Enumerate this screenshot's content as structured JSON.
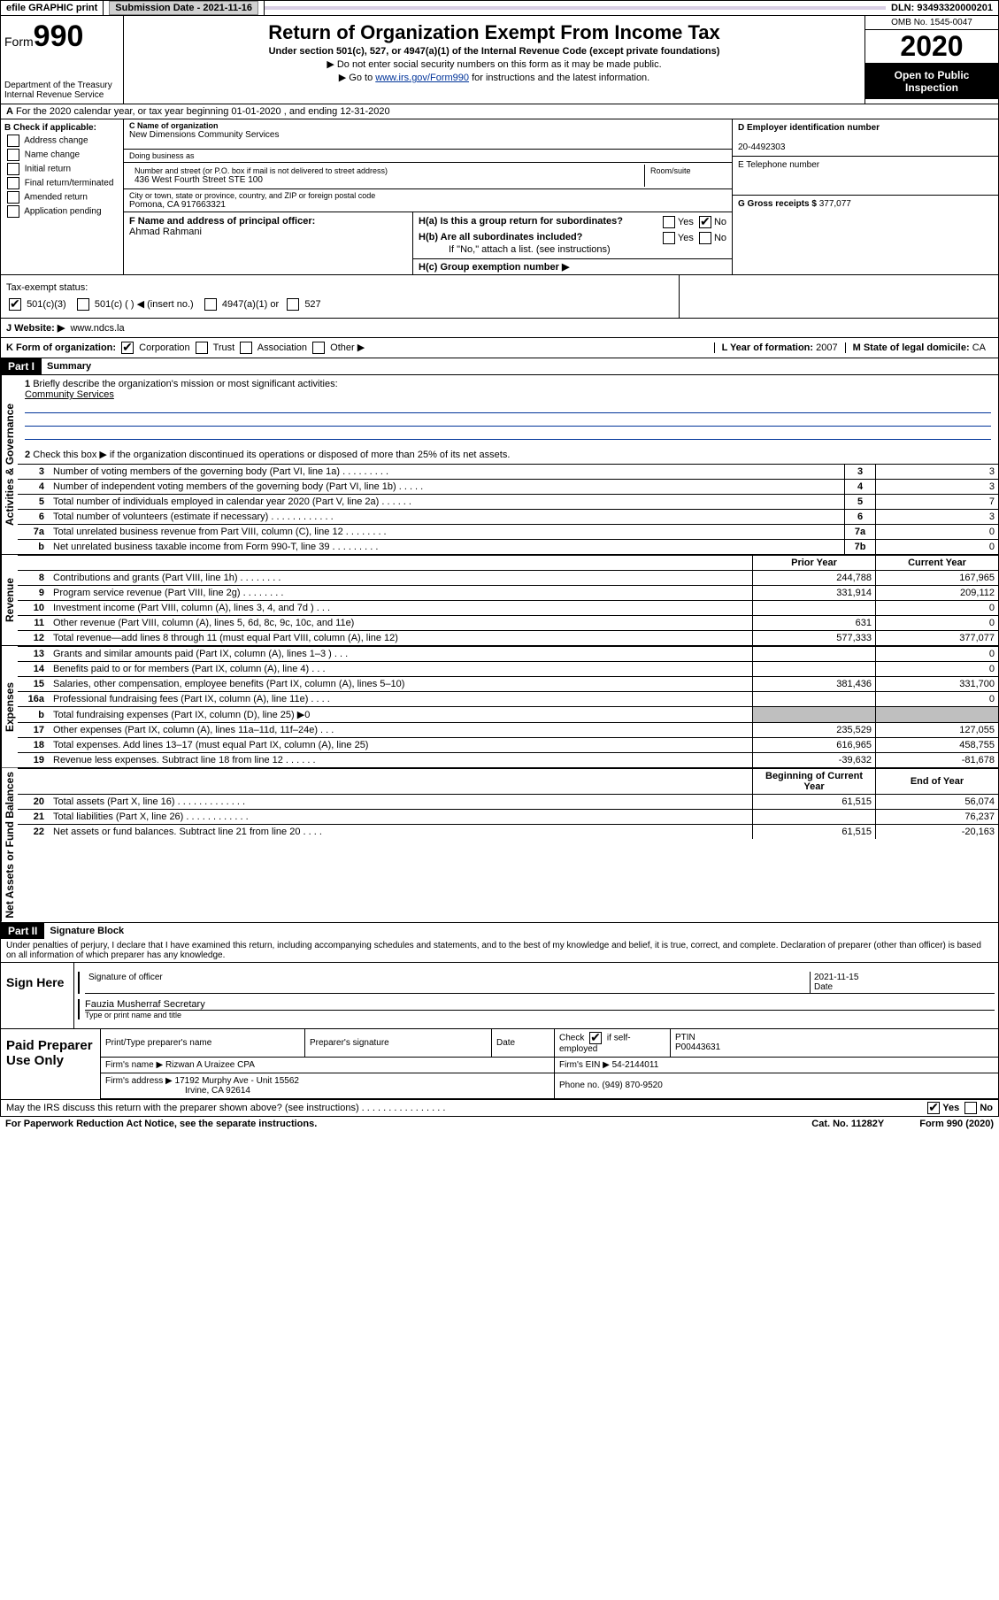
{
  "topbar": {
    "efile": "efile GRAPHIC print",
    "submission_label": "Submission Date",
    "submission_date": "2021-11-16",
    "dln_label": "DLN:",
    "dln": "93493320000201"
  },
  "header": {
    "form_label": "Form",
    "form_number": "990",
    "dept1": "Department of the Treasury",
    "dept2": "Internal Revenue Service",
    "title": "Return of Organization Exempt From Income Tax",
    "subtitle": "Under section 501(c), 527, or 4947(a)(1) of the Internal Revenue Code (except private foundations)",
    "note1": "Do not enter social security numbers on this form as it may be made public.",
    "note2_pre": "Go to ",
    "note2_link": "www.irs.gov/Form990",
    "note2_post": " for instructions and the latest information.",
    "omb": "OMB No. 1545-0047",
    "year": "2020",
    "inspect": "Open to Public Inspection"
  },
  "row_a": "For the 2020 calendar year, or tax year beginning 01-01-2020   , and ending 12-31-2020",
  "section_b": {
    "check_label": "B Check if applicable:",
    "opts": [
      "Address change",
      "Name change",
      "Initial return",
      "Final return/terminated",
      "Amended return",
      "Application pending"
    ],
    "c_label": "C Name of organization",
    "c_name": "New Dimensions Community Services",
    "dba_label": "Doing business as",
    "addr_label": "Number and street (or P.O. box if mail is not delivered to street address)",
    "addr": "436 West Fourth Street STE 100",
    "room_label": "Room/suite",
    "city_label": "City or town, state or province, country, and ZIP or foreign postal code",
    "city": "Pomona, CA  917663321",
    "f_label": "F Name and address of principal officer:",
    "f_name": "Ahmad Rahmani",
    "d_label": "D Employer identification number",
    "d_ein": "20-4492303",
    "e_label": "E Telephone number",
    "g_label": "G Gross receipts $",
    "g_val": "377,077",
    "ha_label": "H(a)  Is this a group return for subordinates?",
    "hb_label": "H(b)  Are all subordinates included?",
    "hb_note": "If \"No,\" attach a list. (see instructions)",
    "hc_label": "H(c)  Group exemption number ▶",
    "yes": "Yes",
    "no": "No"
  },
  "tax": {
    "label": "Tax-exempt status:",
    "opt1": "501(c)(3)",
    "opt2": "501(c) (  ) ◀ (insert no.)",
    "opt3": "4947(a)(1) or",
    "opt4": "527"
  },
  "website": {
    "label": "J    Website: ▶",
    "value": "www.ndcs.la"
  },
  "korg": {
    "k_label": "K Form of organization:",
    "opts": [
      "Corporation",
      "Trust",
      "Association",
      "Other ▶"
    ],
    "l_label": "L Year of formation:",
    "l_val": "2007",
    "m_label": "M State of legal domicile:",
    "m_val": "CA"
  },
  "part1": {
    "label": "Part I",
    "title": "Summary",
    "vlabel_gov": "Activities & Governance",
    "vlabel_rev": "Revenue",
    "vlabel_exp": "Expenses",
    "vlabel_net": "Net Assets or Fund Balances",
    "q1": "Briefly describe the organization's mission or most significant activities:",
    "q1_ans": "Community Services",
    "q2": "Check this box ▶        if the organization discontinued its operations or disposed of more than 25% of its net assets.",
    "rows_gov": [
      {
        "n": "3",
        "txt": "Number of voting members of the governing body (Part VI, line 1a)  .    .    .    .    .    .    .    .    .",
        "box": "3",
        "val": "3"
      },
      {
        "n": "4",
        "txt": "Number of independent voting members of the governing body (Part VI, line 1b)  .    .    .    .    .",
        "box": "4",
        "val": "3"
      },
      {
        "n": "5",
        "txt": "Total number of individuals employed in calendar year 2020 (Part V, line 2a)  .    .    .    .    .    .",
        "box": "5",
        "val": "7"
      },
      {
        "n": "6",
        "txt": "Total number of volunteers (estimate if necessary)  .    .    .    .    .    .    .    .    .    .    .    .",
        "box": "6",
        "val": "3"
      },
      {
        "n": "7a",
        "txt": "Total unrelated business revenue from Part VIII, column (C), line 12  .    .    .    .    .    .    .    .",
        "box": "7a",
        "val": "0"
      },
      {
        "n": "b",
        "txt": "Net unrelated business taxable income from Form 990-T, line 39  .    .    .    .    .    .    .    .    .",
        "box": "7b",
        "val": "0"
      }
    ],
    "hdr_prior": "Prior Year",
    "hdr_current": "Current Year",
    "rows_rev": [
      {
        "n": "8",
        "txt": "Contributions and grants (Part VIII, line 1h)  .    .    .    .    .    .    .    .",
        "p": "244,788",
        "c": "167,965"
      },
      {
        "n": "9",
        "txt": "Program service revenue (Part VIII, line 2g)  .    .    .    .    .    .    .    .",
        "p": "331,914",
        "c": "209,112"
      },
      {
        "n": "10",
        "txt": "Investment income (Part VIII, column (A), lines 3, 4, and 7d )  .    .    .",
        "p": "",
        "c": "0"
      },
      {
        "n": "11",
        "txt": "Other revenue (Part VIII, column (A), lines 5, 6d, 8c, 9c, 10c, and 11e)",
        "p": "631",
        "c": "0"
      },
      {
        "n": "12",
        "txt": "Total revenue—add lines 8 through 11 (must equal Part VIII, column (A), line 12)",
        "p": "577,333",
        "c": "377,077"
      }
    ],
    "rows_exp": [
      {
        "n": "13",
        "txt": "Grants and similar amounts paid (Part IX, column (A), lines 1–3 )  .    .    .",
        "p": "",
        "c": "0"
      },
      {
        "n": "14",
        "txt": "Benefits paid to or for members (Part IX, column (A), line 4)  .    .    .",
        "p": "",
        "c": "0"
      },
      {
        "n": "15",
        "txt": "Salaries, other compensation, employee benefits (Part IX, column (A), lines 5–10)",
        "p": "381,436",
        "c": "331,700"
      },
      {
        "n": "16a",
        "txt": "Professional fundraising fees (Part IX, column (A), line 11e)  .    .    .    .",
        "p": "",
        "c": "0"
      },
      {
        "n": "b",
        "txt": "Total fundraising expenses (Part IX, column (D), line 25) ▶0",
        "p": "shade",
        "c": "shade"
      },
      {
        "n": "17",
        "txt": "Other expenses (Part IX, column (A), lines 11a–11d, 11f–24e)  .    .    .",
        "p": "235,529",
        "c": "127,055"
      },
      {
        "n": "18",
        "txt": "Total expenses. Add lines 13–17 (must equal Part IX, column (A), line 25)",
        "p": "616,965",
        "c": "458,755"
      },
      {
        "n": "19",
        "txt": "Revenue less expenses. Subtract line 18 from line 12  .    .    .    .    .    .",
        "p": "-39,632",
        "c": "-81,678"
      }
    ],
    "hdr_begin": "Beginning of Current Year",
    "hdr_end": "End of Year",
    "rows_net": [
      {
        "n": "20",
        "txt": "Total assets (Part X, line 16)  .    .    .    .    .    .    .    .    .    .    .    .    .",
        "p": "61,515",
        "c": "56,074"
      },
      {
        "n": "21",
        "txt": "Total liabilities (Part X, line 26)  .    .    .    .    .    .    .    .    .    .    .    .",
        "p": "",
        "c": "76,237"
      },
      {
        "n": "22",
        "txt": "Net assets or fund balances. Subtract line 21 from line 20  .    .    .    .",
        "p": "61,515",
        "c": "-20,163"
      }
    ]
  },
  "part2": {
    "label": "Part II",
    "title": "Signature Block",
    "declaration": "Under penalties of perjury, I declare that I have examined this return, including accompanying schedules and statements, and to the best of my knowledge and belief, it is true, correct, and complete. Declaration of preparer (other than officer) is based on all information of which preparer has any knowledge."
  },
  "sign": {
    "left": "Sign Here",
    "sig_label": "Signature of officer",
    "date_label": "Date",
    "date": "2021-11-15",
    "name": "Fauzia Musherraf Secretary",
    "name_label": "Type or print name and title"
  },
  "prep": {
    "left": "Paid Preparer Use Only",
    "h1": "Print/Type preparer's name",
    "h2": "Preparer's signature",
    "h3": "Date",
    "h4_pre": "Check",
    "h4_post": "if self-employed",
    "h5": "PTIN",
    "ptin": "P00443631",
    "firm_name_label": "Firm's name      ▶",
    "firm_name": "Rizwan A Uraizee CPA",
    "firm_ein_label": "Firm's EIN ▶",
    "firm_ein": "54-2144011",
    "firm_addr_label": "Firm's address ▶",
    "firm_addr1": "17192 Murphy Ave - Unit 15562",
    "firm_addr2": "Irvine, CA  92614",
    "phone_label": "Phone no.",
    "phone": "(949) 870-9520"
  },
  "footer": {
    "irs_q": "May the IRS discuss this return with the preparer shown above? (see instructions)  .    .    .    .    .    .    .    .    .    .    .    .    .    .    .    .",
    "yes": "Yes",
    "no": "No",
    "paperwork": "For Paperwork Reduction Act Notice, see the separate instructions.",
    "cat": "Cat. No. 11282Y",
    "form": "Form 990 (2020)"
  }
}
